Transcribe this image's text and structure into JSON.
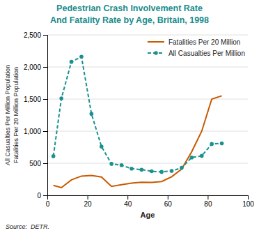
{
  "chart_data": {
    "type": "line",
    "title": "Pedestrian Crash Involvement Rate",
    "subtitle": "And Fatality Rate by Age, Britain, 1998",
    "xlabel": "Age",
    "ylabel": "All Casualties Per Million Population\nFatalities Per 20 Million Population",
    "annotations": [
      "Source:  DETR."
    ],
    "x": [
      3,
      7,
      12,
      17,
      22,
      27,
      32,
      37,
      42,
      47,
      52,
      57,
      62,
      67,
      72,
      77,
      82,
      87
    ],
    "series": [
      {
        "name": "Fatalities Per 20 Million",
        "color": "#c85a00",
        "line_style": "solid",
        "marker": "none",
        "values": [
          155,
          120,
          240,
          300,
          310,
          285,
          140,
          165,
          190,
          205,
          200,
          215,
          290,
          410,
          680,
          1000,
          1500,
          1550
        ]
      },
      {
        "name": "All Casualties Per Million",
        "color": "#1a9090",
        "line_style": "dashed",
        "marker": "circle",
        "values": [
          610,
          1510,
          2080,
          2160,
          1270,
          760,
          490,
          470,
          415,
          400,
          375,
          365,
          380,
          430,
          590,
          615,
          800,
          810
        ]
      }
    ],
    "xlim": [
      0,
      100
    ],
    "ylim": [
      0,
      2500
    ],
    "xticks": [
      0,
      20,
      40,
      60,
      80,
      100
    ],
    "yticks": [
      0,
      500,
      {
        "value": 1000,
        "label": "1,000"
      },
      {
        "value": 1500,
        "label": "1,500"
      },
      {
        "value": 2000,
        "label": "2,000"
      },
      {
        "value": 2500,
        "label": "2,500"
      }
    ],
    "grid": true,
    "legend": "upper right"
  }
}
